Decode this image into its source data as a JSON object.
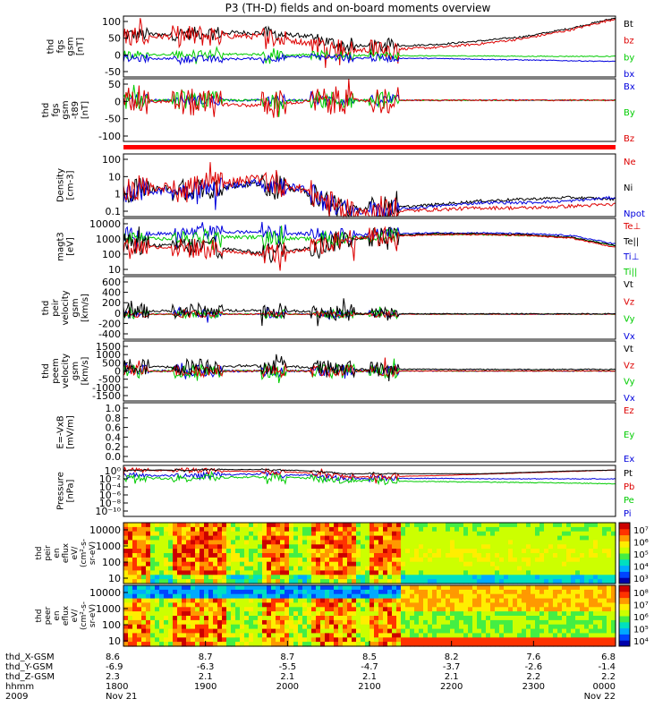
{
  "chart_data": {
    "type": "line",
    "title": "P3 (TH-D) fields and on-board moments overview",
    "panels": [
      {
        "id": "fgs",
        "ylabel": [
          "thd",
          "fgs",
          "gsm",
          "[nT]"
        ],
        "yticks": [
          "100",
          "50",
          "0",
          "-50"
        ],
        "ylim": [
          -60,
          105
        ],
        "legend": [
          "Bt",
          "bz",
          "by",
          "bx"
        ],
        "legend_colors": [
          "#000000",
          "#dd0000",
          "#00cc00",
          "#0000dd"
        ],
        "series": [
          {
            "name": "Bt",
            "color": "#000000",
            "base": [
              55,
              55,
              60,
              60,
              52,
              22,
              24,
              28,
              38,
              50,
              72,
              100
            ],
            "noise": 6,
            "active_noise": 18
          },
          {
            "name": "bz",
            "color": "#dd0000",
            "base": [
              50,
              50,
              52,
              50,
              35,
              12,
              15,
              20,
              30,
              45,
              68,
              98
            ],
            "noise": 8,
            "active_noise": 30
          },
          {
            "name": "by",
            "color": "#00cc00",
            "base": [
              0,
              0,
              2,
              1,
              0,
              -2,
              -2,
              -3,
              -3,
              -4,
              -4,
              -4
            ],
            "noise": 3,
            "active_noise": 12
          },
          {
            "name": "bx",
            "color": "#0000dd",
            "base": [
              -10,
              -10,
              -12,
              -10,
              -5,
              -8,
              -9,
              -10,
              -12,
              -14,
              -16,
              -18
            ],
            "noise": 3,
            "active_noise": 10
          }
        ]
      },
      {
        "id": "fgs_dsl",
        "ylabel": [
          "thd",
          "fgs",
          "gsm",
          "-t89",
          "[nT]"
        ],
        "yticks": [
          "50",
          "0",
          "-50",
          "-100"
        ],
        "ylim": [
          -115,
          60
        ],
        "legend": [
          "Bx",
          "By",
          "Bz"
        ],
        "legend_colors": [
          "#0000dd",
          "#00cc00",
          "#dd0000"
        ],
        "series": [
          {
            "name": "Bx",
            "color": "#0000dd",
            "base": [
              0,
              0,
              0,
              0,
              0,
              0,
              0,
              0,
              0,
              0,
              0,
              0
            ],
            "noise": 3,
            "active_noise": 15
          },
          {
            "name": "By",
            "color": "#00cc00",
            "base": [
              0,
              0,
              0,
              0,
              0,
              0,
              0,
              0,
              0,
              0,
              0,
              0
            ],
            "noise": 3,
            "active_noise": 25
          },
          {
            "name": "Bz",
            "color": "#dd0000",
            "base": [
              0,
              -5,
              -10,
              -15,
              -5,
              0,
              0,
              0,
              0,
              0,
              0,
              0
            ],
            "noise": 5,
            "active_noise": 40
          }
        ]
      },
      {
        "id": "density",
        "ylabel": [
          "Density",
          "[cm-3]"
        ],
        "yticks": [
          "100",
          "10",
          "1",
          "0.1"
        ],
        "ylim": [
          -1.3,
          2.3
        ],
        "log": true,
        "legend": [
          "Ne",
          "Ni",
          "Npot"
        ],
        "legend_colors": [
          "#dd0000",
          "#000000",
          "#0000dd"
        ],
        "series": [
          {
            "name": "Ni",
            "color": "#000000",
            "base": [
              0.2,
              0.3,
              0.4,
              0.6,
              0.2,
              -0.9,
              -0.8,
              -0.6,
              -0.4,
              -0.3,
              -0.2,
              -0.3
            ],
            "noise": 0.2,
            "active_noise": 0.7
          },
          {
            "name": "Npot",
            "color": "#0000dd",
            "base": [
              0.1,
              0.2,
              0.3,
              0.7,
              0.3,
              -1.0,
              -0.9,
              -0.7,
              -0.5,
              -0.5,
              -0.4,
              -0.2
            ],
            "noise": 0.2,
            "active_noise": 0.6
          },
          {
            "name": "Ne",
            "color": "#dd0000",
            "base": [
              0.3,
              0.4,
              0.5,
              0.9,
              0.3,
              -1.1,
              -1.0,
              -0.9,
              -0.8,
              -0.8,
              -0.7,
              -0.6
            ],
            "noise": 0.25,
            "active_noise": 0.8
          }
        ]
      },
      {
        "id": "temperature",
        "ylabel": [
          "magt3",
          "[eV]"
        ],
        "yticks": [
          "10000",
          "1000",
          "100",
          "10"
        ],
        "ylim": [
          0.9,
          4.2
        ],
        "log": true,
        "legend": [
          "Te⊥",
          "Te||",
          "Ti⊥",
          "Ti||"
        ],
        "legend_colors": [
          "#dd0000",
          "#000000",
          "#0000dd",
          "#00cc00"
        ],
        "series": [
          {
            "name": "Ti⊥",
            "color": "#0000dd",
            "base": [
              3.3,
              3.3,
              3.4,
              3.4,
              3.3,
              3.2,
              3.3,
              3.35,
              3.35,
              3.3,
              3.2,
              2.7
            ],
            "noise": 0.1,
            "active_noise": 0.4
          },
          {
            "name": "Ti||",
            "color": "#00cc00",
            "base": [
              3.0,
              3.0,
              3.1,
              3.1,
              3.0,
              3.0,
              3.2,
              3.25,
              3.25,
              3.2,
              3.1,
              2.6
            ],
            "noise": 0.1,
            "active_noise": 0.4
          },
          {
            "name": "Te||",
            "color": "#000000",
            "base": [
              2.7,
              2.6,
              2.5,
              2.2,
              2.4,
              3.0,
              3.2,
              3.3,
              3.3,
              3.25,
              3.1,
              2.6
            ],
            "noise": 0.1,
            "active_noise": 0.6
          },
          {
            "name": "Te⊥",
            "color": "#dd0000",
            "base": [
              2.6,
              2.5,
              2.4,
              2.1,
              2.3,
              3.0,
              3.15,
              3.25,
              3.25,
              3.2,
              3.05,
              2.5
            ],
            "noise": 0.1,
            "active_noise": 0.6
          }
        ]
      },
      {
        "id": "peir_velocity",
        "ylabel": [
          "thd",
          "peir",
          "velocity",
          "gsm",
          "[km/s]"
        ],
        "yticks": [
          "600",
          "400",
          "200",
          "0",
          "-200",
          "-400"
        ],
        "ylim": [
          -400,
          600
        ],
        "legend": [
          "Vt",
          "Vz",
          "Vy",
          "Vx"
        ],
        "legend_colors": [
          "#000000",
          "#dd0000",
          "#00cc00",
          "#0000dd"
        ],
        "series": [
          {
            "name": "Vx",
            "color": "#0000dd",
            "base": [
              0,
              0,
              0,
              0,
              0,
              0,
              0,
              0,
              0,
              0,
              0,
              0
            ],
            "noise": 10,
            "active_noise": 60
          },
          {
            "name": "Vy",
            "color": "#00cc00",
            "base": [
              0,
              0,
              0,
              0,
              0,
              0,
              0,
              0,
              0,
              0,
              0,
              0
            ],
            "noise": 10,
            "active_noise": 70
          },
          {
            "name": "Vz",
            "color": "#dd0000",
            "base": [
              0,
              0,
              0,
              0,
              0,
              0,
              0,
              0,
              0,
              0,
              0,
              0
            ],
            "noise": 8,
            "active_noise": 50
          },
          {
            "name": "Vt",
            "color": "#000000",
            "base": [
              50,
              50,
              60,
              60,
              50,
              5,
              5,
              5,
              5,
              5,
              5,
              5
            ],
            "noise": 20,
            "active_noise": 120
          }
        ]
      },
      {
        "id": "peem_velocity",
        "ylabel": [
          "thd",
          "peem",
          "velocity",
          "gsm",
          "[km/s]"
        ],
        "yticks": [
          "1500",
          "1000",
          "500",
          "0",
          "-500",
          "-1000",
          "-1500"
        ],
        "ylim": [
          -1500,
          1500
        ],
        "legend": [
          "Vt",
          "Vz",
          "Vy",
          "Vx"
        ],
        "legend_colors": [
          "#000000",
          "#dd0000",
          "#00cc00",
          "#0000dd"
        ],
        "series": [
          {
            "name": "Vx",
            "color": "#0000dd",
            "base": [
              0,
              0,
              0,
              0,
              0,
              0,
              0,
              0,
              0,
              0,
              0,
              0
            ],
            "noise": 60,
            "active_noise": 300
          },
          {
            "name": "Vy",
            "color": "#00cc00",
            "base": [
              0,
              0,
              0,
              0,
              0,
              0,
              0,
              0,
              0,
              0,
              0,
              0
            ],
            "noise": 50,
            "active_noise": 350
          },
          {
            "name": "Vz",
            "color": "#dd0000",
            "base": [
              0,
              0,
              0,
              0,
              0,
              0,
              0,
              0,
              0,
              0,
              0,
              0
            ],
            "noise": 40,
            "active_noise": 300
          },
          {
            "name": "Vt",
            "color": "#000000",
            "base": [
              200,
              200,
              250,
              250,
              200,
              80,
              90,
              90,
              80,
              80,
              80,
              80
            ],
            "noise": 60,
            "active_noise": 400
          }
        ]
      },
      {
        "id": "efield",
        "ylabel": [
          "E=-VxB",
          "[mV/m]"
        ],
        "yticks": [
          "1.0",
          "0.8",
          "0.6",
          "0.4",
          "0.2",
          "0.0"
        ],
        "ylim": [
          0,
          1
        ],
        "legend": [
          "Ez",
          "Ey",
          "Ex"
        ],
        "legend_colors": [
          "#dd0000",
          "#00cc00",
          "#0000dd"
        ],
        "series": []
      },
      {
        "id": "pressure",
        "ylabel": [
          "Pressure",
          "[nPa]"
        ],
        "yticks": [
          "10⁰",
          "10⁻²",
          "10⁻⁴",
          "10⁻⁶",
          "10⁻⁸",
          "10⁻¹⁰"
        ],
        "ylim": [
          -10,
          1
        ],
        "log": true,
        "legend": [
          "Pt",
          "Pb",
          "Pe",
          "Pi"
        ],
        "legend_colors": [
          "#000000",
          "#dd0000",
          "#00cc00",
          "#0000dd"
        ],
        "series": [
          {
            "name": "Pi",
            "color": "#0000dd",
            "base": [
              -1.2,
              -1.2,
              -1.0,
              -0.9,
              -1.1,
              -1.8,
              -1.8,
              -1.8,
              -1.9,
              -1.9,
              -1.9,
              -1.9
            ],
            "noise": 0.2,
            "active_noise": 0.6
          },
          {
            "name": "Pe",
            "color": "#00cc00",
            "base": [
              -1.8,
              -1.8,
              -1.6,
              -1.5,
              -1.7,
              -2.3,
              -2.4,
              -2.5,
              -2.6,
              -2.7,
              -2.8,
              -3.0
            ],
            "noise": 0.2,
            "active_noise": 0.8
          },
          {
            "name": "Pb",
            "color": "#dd0000",
            "base": [
              -0.1,
              -0.1,
              -0.2,
              -0.3,
              -0.5,
              -1.5,
              -1.4,
              -1.2,
              -0.9,
              -0.6,
              -0.3,
              0.0
            ],
            "noise": 0.1,
            "active_noise": 0.6
          },
          {
            "name": "Pt",
            "color": "#000000",
            "base": [
              0.0,
              0.0,
              0.1,
              0.1,
              -0.1,
              -0.8,
              -0.8,
              -0.8,
              -0.8,
              -0.5,
              -0.2,
              0.0
            ],
            "noise": 0.05,
            "active_noise": 0.2
          }
        ]
      }
    ],
    "spectrograms": [
      {
        "id": "peir_en_eflux",
        "ylabel": [
          "thd",
          "peir",
          "en",
          "eflux",
          "eV/",
          "(cm²-s-",
          "sr-eV)"
        ],
        "yticks": [
          "10000",
          "1000",
          "100",
          "10"
        ],
        "colorbar_ticks": [
          "10⁷",
          "10⁶",
          "10⁵",
          "10⁴",
          "10³"
        ],
        "colorbar_range": [
          1000,
          10000000
        ]
      },
      {
        "id": "peer_en_eflux",
        "ylabel": [
          "thd",
          "peer",
          "en",
          "eflux",
          "eV/",
          "(cm²-s-",
          "sr-eV)"
        ],
        "yticks": [
          "10000",
          "1000",
          "100",
          "10"
        ],
        "colorbar_ticks": [
          "10⁸",
          "10⁷",
          "10⁶",
          "10⁵",
          "10⁴"
        ],
        "colorbar_range": [
          10000,
          100000000
        ]
      }
    ],
    "x_axis": {
      "range": [
        "2009-11-21 18:00",
        "2009-11-22 00:00"
      ],
      "rows": [
        {
          "label": "thd_X-GSM",
          "values": [
            "8.6",
            "8.7",
            "8.7",
            "8.5",
            "8.2",
            "7.6",
            "6.8"
          ]
        },
        {
          "label": "thd_Y-GSM",
          "values": [
            "-6.9",
            "-6.3",
            "-5.5",
            "-4.7",
            "-3.7",
            "-2.6",
            "-1.4"
          ]
        },
        {
          "label": "thd_Z-GSM",
          "values": [
            "2.3",
            "2.1",
            "2.1",
            "2.1",
            "2.1",
            "2.2",
            "2.2"
          ]
        },
        {
          "label": "hhmm",
          "values": [
            "1800",
            "1900",
            "2000",
            "2100",
            "2200",
            "2300",
            "0000"
          ]
        },
        {
          "label": "2009",
          "values": [
            "Nov 21",
            "",
            "",
            "",
            "",
            "",
            "Nov 22"
          ]
        }
      ]
    }
  }
}
